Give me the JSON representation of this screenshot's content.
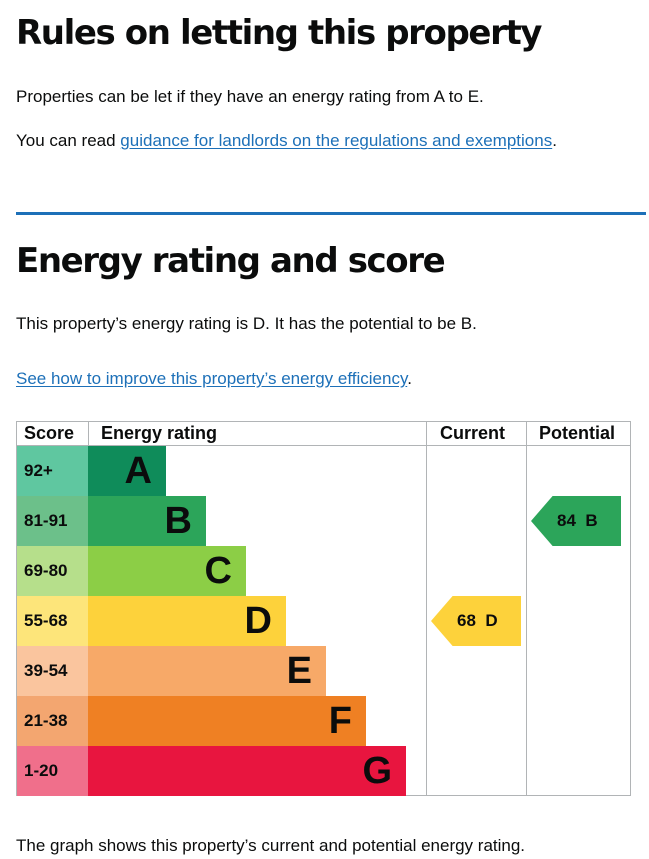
{
  "rules": {
    "heading": "Rules on letting this property",
    "paragraph": "Properties can be let if they have an energy rating from A to E.",
    "guidance_prefix": "You can read ",
    "guidance_link": "guidance for landlords on the regulations and exemptions",
    "guidance_suffix": "."
  },
  "energy": {
    "heading": "Energy rating and score",
    "summary": "This property’s energy rating is D. It has the potential to be B.",
    "improve_link": "See how to improve this property’s energy efficiency",
    "improve_suffix": ".",
    "footnote": "The graph shows this property’s current and potential energy rating."
  },
  "chart_data": {
    "type": "table",
    "columns": [
      "Score",
      "Energy rating",
      "Current",
      "Potential"
    ],
    "bands": [
      {
        "score": "92+",
        "letter": "A",
        "color": "#0f8c5a"
      },
      {
        "score": "81-91",
        "letter": "B",
        "color": "#2ca55a"
      },
      {
        "score": "69-80",
        "letter": "C",
        "color": "#8cce46"
      },
      {
        "score": "55-68",
        "letter": "D",
        "color": "#fdd23b"
      },
      {
        "score": "39-54",
        "letter": "E",
        "color": "#f7a968"
      },
      {
        "score": "21-38",
        "letter": "F",
        "color": "#ef8023"
      },
      {
        "score": "1-20",
        "letter": "G",
        "color": "#e8153f"
      }
    ],
    "current": {
      "score": 68,
      "rating": "D",
      "label": "68  D"
    },
    "potential": {
      "score": 84,
      "rating": "B",
      "label": "84  B"
    }
  }
}
